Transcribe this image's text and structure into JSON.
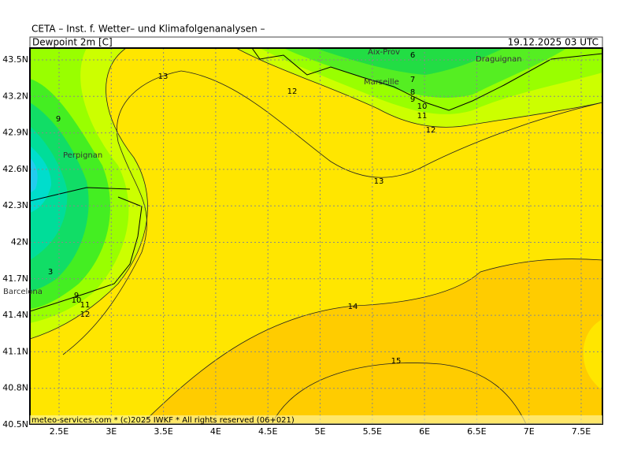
{
  "header": {
    "institute": "CETA – Inst. f. Wetter– und Klimafolgenanalysen –",
    "title": "Dewpoint 2m [C]",
    "valid_time": "19.12.2025 03 UTC"
  },
  "axes": {
    "lon": [
      "2.5E",
      "3E",
      "3.5E",
      "4E",
      "4.5E",
      "5E",
      "5.5E",
      "6E",
      "6.5E",
      "7E",
      "7.5E"
    ],
    "lat": [
      "43.5N",
      "43.2N",
      "42.9N",
      "42.6N",
      "42.3N",
      "42N",
      "41.7N",
      "41.4N",
      "41.1N",
      "40.8N",
      "40.5N"
    ]
  },
  "places": [
    "Aix-Prov",
    "Draguignan",
    "Marseille",
    "Perpignan",
    "Barcelona"
  ],
  "contour_labels": [
    13,
    12,
    13,
    14,
    15,
    6,
    7,
    8,
    9,
    10,
    11,
    12,
    9,
    3,
    9,
    10,
    11,
    12
  ],
  "footer": "meteo-services.com * (c)2025 IWKF * All rights reserved (06+021)"
}
